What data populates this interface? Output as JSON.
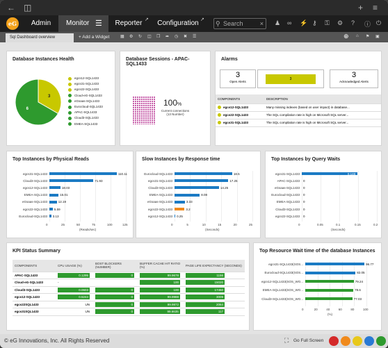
{
  "nav": {
    "logo": "eG",
    "tabs": [
      "Admin",
      "Monitor",
      "Reporter",
      "Configuration"
    ],
    "search_placeholder": "Search"
  },
  "dashboard": {
    "tab_label": "Sql Dashboard overview",
    "add_widget": "+ Add a Widget"
  },
  "health": {
    "title": "Database Instances Health",
    "chart_data": {
      "type": "pie",
      "categories": [
        "Warning",
        "Normal"
      ],
      "values": [
        3,
        6
      ],
      "colors": [
        "#c8c800",
        "#2e9a2e"
      ]
    },
    "instances": [
      {
        "name": "egcs12-SQL1433",
        "status": "warning"
      },
      {
        "name": "egcs31-SQL1433",
        "status": "warning"
      },
      {
        "name": "egcs22-SQL1433",
        "status": "warning"
      },
      {
        "name": "Cloud-eG-SQL1433",
        "status": "ok"
      },
      {
        "name": "eGsaas-SQL1433",
        "status": "ok"
      },
      {
        "name": "Eurocloud-SQL1433",
        "status": "ok"
      },
      {
        "name": "APAC-SQL1433",
        "status": "ok"
      },
      {
        "name": "Cloud3-SQL1433",
        "status": "ok"
      },
      {
        "name": "EMEA-SQL1433",
        "status": "ok"
      }
    ]
  },
  "sessions": {
    "title": "Database Sessions - APAC-SQL1433",
    "percent": "100",
    "pct_sign": "%",
    "caption1": "Current connections",
    "caption2": "(13 Number)"
  },
  "alarms": {
    "title": "Alarms",
    "open_count": "3",
    "open_label": "Open Alerts",
    "bar_count": "3",
    "ack_count": "3",
    "ack_label": "Acknowledged Alerts",
    "col_components": "COMPONENTS",
    "col_description": "DESCRIPTION",
    "rows": [
      {
        "component": "egcs12-SQL1433",
        "description": "Many missing indexes (based on user impact) in database..."
      },
      {
        "component": "egcs22-SQL1433",
        "description": "The SQL compilation rate is high on Microsoft SQL server..."
      },
      {
        "component": "egcs31-SQL1433",
        "description": "The SQL compilation rate is high on Microsoft SQL server..."
      }
    ]
  },
  "reads": {
    "title": "Top Instances by Physical Reads",
    "unit": "(Reads/sec)",
    "chart_data": {
      "type": "bar",
      "categories": [
        "egcs31-SQL1433",
        "Cloud3-SQL1433",
        "egcs12-SQL1433",
        "EMEA-SQL1433",
        "eGsaas-SQL1433",
        "egcs22-SQL1433",
        "Eurocloud-SQL1433"
      ],
      "values": [
        110.11,
        71.93,
        18.03,
        15.01,
        12.19,
        5.59,
        3.13
      ],
      "labels": [
        "110.11",
        "71.93",
        "18.03",
        "15.01",
        "12.19",
        "5.59",
        "3.13"
      ],
      "colors": [
        "#1b7bc4",
        "#1b7bc4",
        "#1b7bc4",
        "#1b7bc4",
        "#1b7bc4",
        "#1b7bc4",
        "#1b7bc4"
      ],
      "ticks": [
        "0",
        "25",
        "50",
        "75",
        "100",
        "125"
      ],
      "xlim": [
        0,
        125
      ]
    }
  },
  "slow": {
    "title": "Slow Instances by Response time",
    "unit": "(Seconds)",
    "chart_data": {
      "type": "bar",
      "categories": [
        "Eurocloud-SQL1433",
        "egcs31-SQL1433",
        "Cloud3-SQL1433",
        "EMEA-SQL1433",
        "eGsaas-SQL1433",
        "egcs22-SQL1433",
        "egcs12-SQL1433"
      ],
      "values": [
        18.5,
        17.25,
        14.25,
        8.08,
        3.33,
        3.2,
        0.25
      ],
      "labels": [
        "18.5",
        "17.25",
        "14.25",
        "8.08",
        "3.33",
        "3.2",
        "0.25"
      ],
      "colors": [
        "#1b7bc4",
        "#1b7bc4",
        "#1b7bc4",
        "#1b7bc4",
        "#1b7bc4",
        "#f08a1c",
        "#1b7bc4"
      ],
      "ticks": [
        "0",
        "5",
        "10",
        "15",
        "20",
        "25"
      ],
      "xlim": [
        0,
        25
      ]
    }
  },
  "waits": {
    "title": "Top Instances by Query Waits",
    "unit": "(Seconds)",
    "chart_data": {
      "type": "bar",
      "categories": [
        "egcs31-SQL1433",
        "APAC-SQL1433",
        "eGsaas-SQL1433",
        "Eurocloud-SQL1433",
        "EMEA-SQL1433",
        "Cloud3-SQL1433",
        "egcs22-SQL1433"
      ],
      "values": [
        0.148,
        0,
        0,
        0,
        0,
        0,
        0
      ],
      "labels": [
        "0.148",
        "0",
        "0",
        "0",
        "0",
        "0",
        "0"
      ],
      "colors": [
        "#1b7bc4",
        "#1b7bc4",
        "#1b7bc4",
        "#1b7bc4",
        "#1b7bc4",
        "#1b7bc4",
        "#1b7bc4"
      ],
      "ticks": [
        "0",
        "0.05",
        "0.1",
        "0.15",
        "0.2"
      ],
      "xlim": [
        0,
        0.2
      ]
    }
  },
  "kpi": {
    "title": "KPI Status Summary",
    "headers": [
      "COMPONENTS",
      "CPU USAGE (%)",
      "BOST BLOCKERS (NUMBER)",
      "BUFFER CACHE HIT RATIO (%)",
      "PAGE LIFE EXPECTANCY (SECONDS)"
    ],
    "rows": [
      {
        "name": "APAC-SQL1433",
        "cpu": "0.1295",
        "cpu_pct": 0.1295,
        "blockers": "0",
        "buffer": "99.9678",
        "buffer_pct": 99.9678,
        "ple": "1156"
      },
      {
        "name": "Cloud-eG-SQL1433",
        "cpu": "-",
        "cpu_pct": 0,
        "blockers": "",
        "buffer": "100",
        "buffer_pct": 100,
        "ple": "15020"
      },
      {
        "name": "Cloud3-SQL1433",
        "cpu": "0.0603",
        "cpu_pct": 0.0603,
        "blockers": "0",
        "buffer": "100",
        "buffer_pct": 100,
        "ple": "17450"
      },
      {
        "name": "egcs12-SQL1433",
        "cpu": "0.5244",
        "cpu_pct": 0.5244,
        "blockers": "0",
        "buffer": "99.9988",
        "buffer_pct": 99.9988,
        "ple": "3009"
      },
      {
        "name": "egcs22SQL1433",
        "cpu": "UN",
        "cpu_pct": 0,
        "blockers": "0",
        "buffer": "99.9872",
        "buffer_pct": 99.9872,
        "ple": "2064"
      },
      {
        "name": "egcs31SQL1433",
        "cpu": "UN",
        "cpu_pct": 0,
        "blockers": "0",
        "buffer": "99.6635",
        "buffer_pct": 99.6635,
        "ple": "117"
      }
    ]
  },
  "resource": {
    "title": "Top Resource Wait time of the database Instances",
    "unit": "(%)",
    "chart_data": {
      "type": "bar",
      "categories": [
        "egcs31-SQL1433(SOS...",
        "Eurocloud-SQL1433(SOS...",
        "egcs12-SQL1433(SOS_WO...",
        "EMEA-SQL1433(SOS_WO...",
        "Cloud3-SQL1433(SOS_WO..."
      ],
      "values": [
        96.77,
        82.05,
        79.24,
        78.6,
        77.03
      ],
      "labels": [
        "96.77",
        "82.05",
        "79.24",
        "78.6",
        "77.03"
      ],
      "colors": [
        "#1b7bc4",
        "#1b7bc4",
        "#2e9a2e",
        "#2e9a2e",
        "#2e9a2e"
      ],
      "ticks": [
        "0",
        "20",
        "40",
        "60",
        "80",
        "100"
      ],
      "xlim": [
        0,
        100
      ]
    }
  },
  "footer": {
    "copyright": "© eG Innovations, Inc. All Rights Reserved",
    "fullscreen": "Go Full Screen"
  }
}
